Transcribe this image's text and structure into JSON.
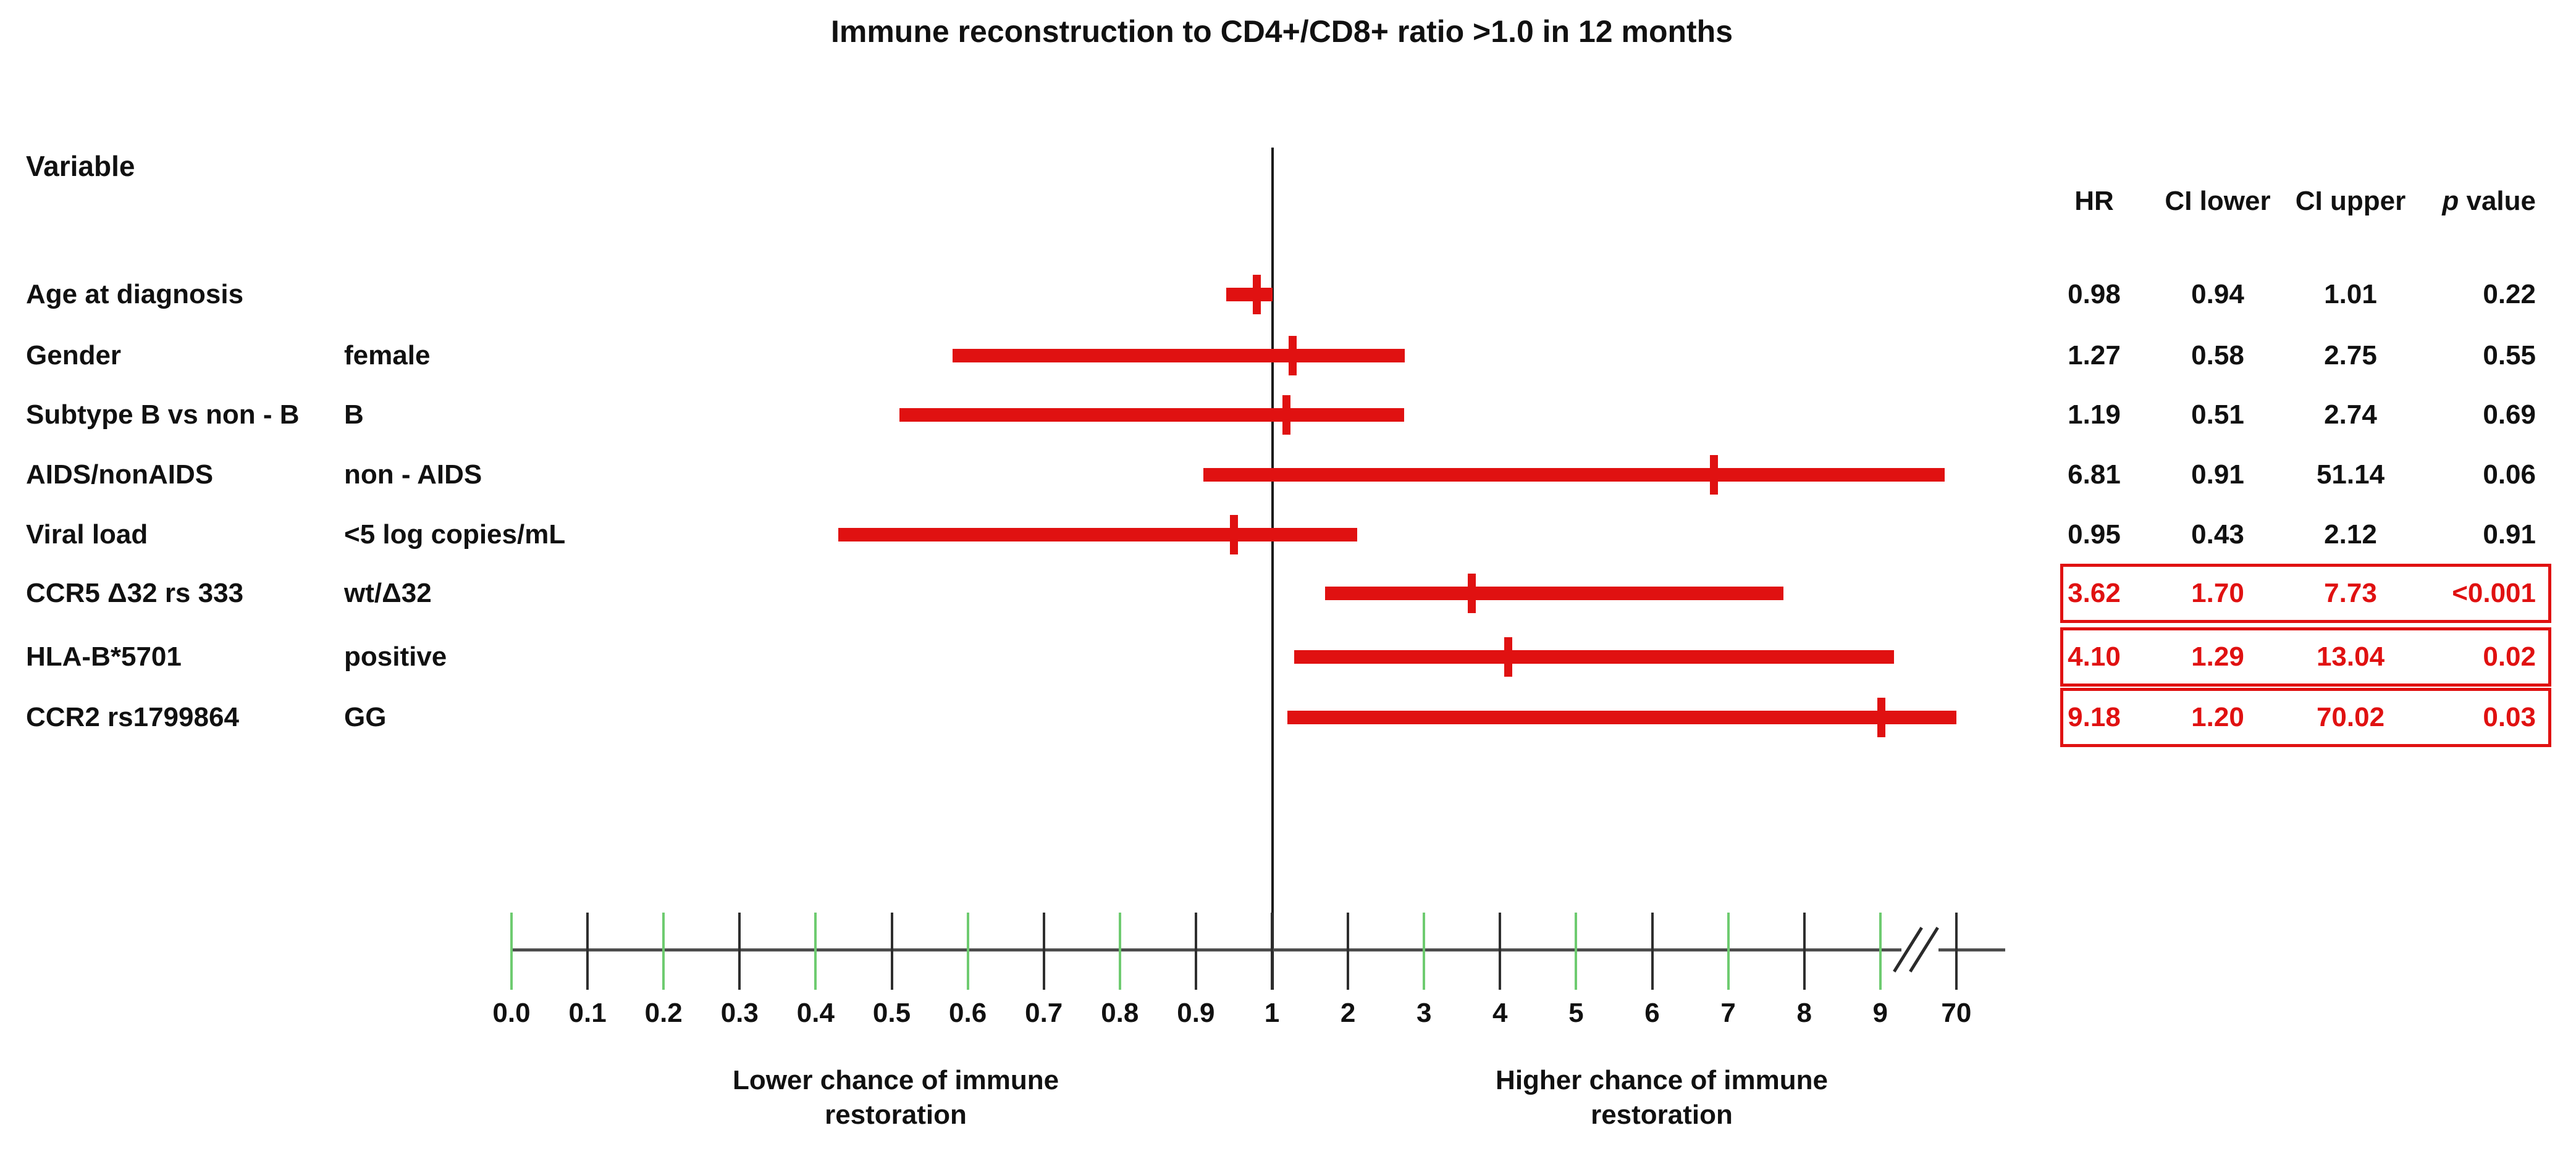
{
  "variable_header": "Variable",
  "table": {
    "columns": [
      "HR",
      "CI lower",
      "CI upper"
    ],
    "p_column": {
      "italic": "p",
      "rest": " value"
    }
  },
  "direction_labels": {
    "left_line1": "Lower chance of immune",
    "left_line2": "restoration",
    "right_line1": "Higher chance of immune",
    "right_line2": "restoration"
  },
  "colors": {
    "bar_red": "#e01111",
    "highlight_red": "#e01111",
    "tick_green": "#6ecb70",
    "tick_black": "#2e2e2e",
    "axis_gray": "#4d4d4d",
    "reference_line": "#161616"
  },
  "chart_data": {
    "type": "forest",
    "title": "Immune reconstruction to CD4+/CD8+ ratio >1.0 in 12 months",
    "x_axis": {
      "scale_note": "equally spaced ticks 0.0-0.9, 1-9, axis break, 70",
      "reference_value": "1",
      "ticks": [
        {
          "label": "0.0",
          "color": "green"
        },
        {
          "label": "0.1",
          "color": "black"
        },
        {
          "label": "0.2",
          "color": "green"
        },
        {
          "label": "0.3",
          "color": "black"
        },
        {
          "label": "0.4",
          "color": "green"
        },
        {
          "label": "0.5",
          "color": "black"
        },
        {
          "label": "0.6",
          "color": "green"
        },
        {
          "label": "0.7",
          "color": "black"
        },
        {
          "label": "0.8",
          "color": "green"
        },
        {
          "label": "0.9",
          "color": "black"
        },
        {
          "label": "1",
          "color": "black"
        },
        {
          "label": "2",
          "color": "black"
        },
        {
          "label": "3",
          "color": "green"
        },
        {
          "label": "4",
          "color": "black"
        },
        {
          "label": "5",
          "color": "green"
        },
        {
          "label": "6",
          "color": "black"
        },
        {
          "label": "7",
          "color": "green"
        },
        {
          "label": "8",
          "color": "black"
        },
        {
          "label": "9",
          "color": "green"
        },
        {
          "label": "70",
          "color": "black"
        }
      ],
      "axis_break_between": [
        "9",
        "70"
      ]
    },
    "rows": [
      {
        "variable": "Age at diagnosis",
        "level": "",
        "hr": "0.98",
        "ci_lower": "0.94",
        "ci_upper": "1.01",
        "p": "0.22",
        "significant": false
      },
      {
        "variable": "Gender",
        "level": "female",
        "hr": "1.27",
        "ci_lower": "0.58",
        "ci_upper": "2.75",
        "p": "0.55",
        "significant": false
      },
      {
        "variable": "Subtype B vs non - B",
        "level": "B",
        "hr": "1.19",
        "ci_lower": "0.51",
        "ci_upper": "2.74",
        "p": "0.69",
        "significant": false
      },
      {
        "variable": "AIDS/nonAIDS",
        "level": "non - AIDS",
        "hr": "6.81",
        "ci_lower": "0.91",
        "ci_upper": "51.14",
        "p": "0.06",
        "significant": false
      },
      {
        "variable": "Viral load",
        "level": "<5 log copies/mL",
        "hr": "0.95",
        "ci_lower": "0.43",
        "ci_upper": "2.12",
        "p": "0.91",
        "significant": false
      },
      {
        "variable": "CCR5 Δ32 rs 333",
        "level": "wt/Δ32",
        "hr": "3.62",
        "ci_lower": "1.70",
        "ci_upper": "7.73",
        "p": "<0.001",
        "significant": true
      },
      {
        "variable": "HLA-B*5701",
        "level": "positive",
        "hr": "4.10",
        "ci_lower": "1.29",
        "ci_upper": "13.04",
        "p": "0.02",
        "significant": true
      },
      {
        "variable": "CCR2 rs1799864",
        "level": "GG",
        "hr": "9.18",
        "ci_lower": "1.20",
        "ci_upper": "70.02",
        "p": "0.03",
        "significant": true
      }
    ],
    "direction_label_left": "Lower chance of immune restoration",
    "direction_label_right": "Higher chance of immune restoration"
  }
}
